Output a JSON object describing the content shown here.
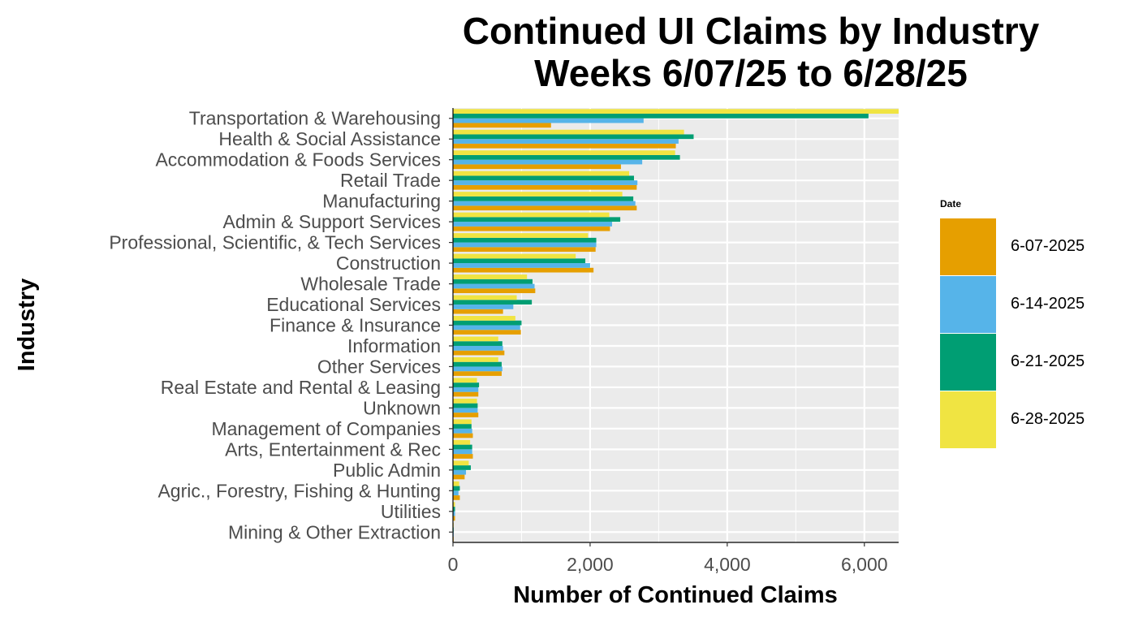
{
  "chart_data": {
    "type": "bar",
    "orientation": "horizontal",
    "title": [
      "Continued UI Claims by Industry",
      "Weeks 6/07/25 to 6/28/25"
    ],
    "xlabel": "Number of Continued Claims",
    "ylabel": "Industry",
    "xlim": [
      0,
      6500
    ],
    "xticks": [
      0,
      2000,
      4000,
      6000
    ],
    "xtick_labels": [
      "0",
      "2,000",
      "4,000",
      "6,000"
    ],
    "grid": true,
    "legend": {
      "title": "Date",
      "position": "right"
    },
    "categories": [
      "Transportation & Warehousing",
      "Health & Social Assistance",
      "Accommodation & Foods Services",
      "Retail Trade",
      "Manufacturing",
      "Admin & Support Services",
      "Professional, Scientific, & Tech Services",
      "Construction",
      "Wholesale Trade",
      "Educational Services",
      "Finance & Insurance",
      "Information",
      "Other Services",
      "Real Estate and Rental & Leasing",
      "Unknown",
      "Management of Companies",
      "Arts, Entertainment & Rec",
      "Public Admin",
      "Agric., Forestry, Fishing & Hunting",
      "Utilities",
      "Mining & Other Extraction"
    ],
    "series": [
      {
        "name": "6-07-2025",
        "color": "#E69F00",
        "values": [
          1430,
          3250,
          2450,
          2680,
          2680,
          2290,
          2080,
          2050,
          1200,
          730,
          990,
          750,
          710,
          370,
          370,
          290,
          290,
          170,
          100,
          30,
          10
        ]
      },
      {
        "name": "6-14-2025",
        "color": "#56B4E9",
        "values": [
          2780,
          3290,
          2760,
          2690,
          2660,
          2320,
          2090,
          2000,
          1190,
          880,
          980,
          730,
          720,
          370,
          360,
          280,
          280,
          190,
          80,
          30,
          10
        ]
      },
      {
        "name": "6-21-2025",
        "color": "#009E73",
        "values": [
          6060,
          3510,
          3310,
          2640,
          2630,
          2440,
          2090,
          1930,
          1160,
          1150,
          1000,
          720,
          710,
          380,
          360,
          270,
          280,
          260,
          100,
          30,
          10
        ]
      },
      {
        "name": "6-28-2025",
        "color": "#F0E442",
        "values": [
          6500,
          3370,
          3240,
          2570,
          2470,
          2280,
          1970,
          1790,
          1080,
          930,
          910,
          660,
          660,
          350,
          350,
          270,
          250,
          230,
          90,
          30,
          10
        ]
      }
    ]
  }
}
